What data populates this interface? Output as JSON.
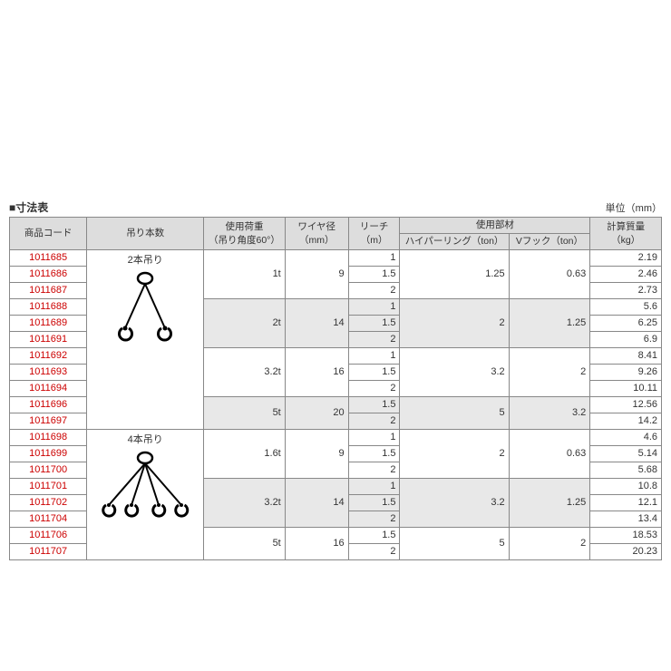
{
  "title": "■寸法表",
  "unit": "単位（mm）",
  "headers": {
    "code": "商品コード",
    "sling": "吊り本数",
    "load": "使用荷重",
    "load_sub": "（吊り角度60°）",
    "wire": "ワイヤ径",
    "wire_unit": "（mm）",
    "reach": "リーチ",
    "reach_unit": "（m）",
    "parts": "使用部材",
    "ring": "ハイパーリング（ton）",
    "hook": "Vフック（ton）",
    "mass": "計算質量",
    "mass_unit": "（kg）"
  },
  "slings": {
    "two": "2本吊り",
    "four": "4本吊り"
  },
  "groups": [
    {
      "load": "1t",
      "wire": "9",
      "ring": "1.25",
      "hook": "0.63",
      "shade": false,
      "rows": [
        {
          "code": "1011685",
          "reach": "1",
          "mass": "2.19"
        },
        {
          "code": "1011686",
          "reach": "1.5",
          "mass": "2.46"
        },
        {
          "code": "1011687",
          "reach": "2",
          "mass": "2.73"
        }
      ]
    },
    {
      "load": "2t",
      "wire": "14",
      "ring": "2",
      "hook": "1.25",
      "shade": true,
      "rows": [
        {
          "code": "1011688",
          "reach": "1",
          "mass": "5.6"
        },
        {
          "code": "1011689",
          "reach": "1.5",
          "mass": "6.25"
        },
        {
          "code": "1011691",
          "reach": "2",
          "mass": "6.9"
        }
      ]
    },
    {
      "load": "3.2t",
      "wire": "16",
      "ring": "3.2",
      "hook": "2",
      "shade": false,
      "rows": [
        {
          "code": "1011692",
          "reach": "1",
          "mass": "8.41"
        },
        {
          "code": "1011693",
          "reach": "1.5",
          "mass": "9.26"
        },
        {
          "code": "1011694",
          "reach": "2",
          "mass": "10.11"
        }
      ]
    },
    {
      "load": "5t",
      "wire": "20",
      "ring": "5",
      "hook": "3.2",
      "shade": true,
      "rows": [
        {
          "code": "1011696",
          "reach": "1.5",
          "mass": "12.56"
        },
        {
          "code": "1011697",
          "reach": "2",
          "mass": "14.2"
        }
      ]
    },
    {
      "load": "1.6t",
      "wire": "9",
      "ring": "2",
      "hook": "0.63",
      "shade": false,
      "rows": [
        {
          "code": "1011698",
          "reach": "1",
          "mass": "4.6"
        },
        {
          "code": "1011699",
          "reach": "1.5",
          "mass": "5.14"
        },
        {
          "code": "1011700",
          "reach": "2",
          "mass": "5.68"
        }
      ]
    },
    {
      "load": "3.2t",
      "wire": "14",
      "ring": "3.2",
      "hook": "1.25",
      "shade": true,
      "rows": [
        {
          "code": "1011701",
          "reach": "1",
          "mass": "10.8"
        },
        {
          "code": "1011702",
          "reach": "1.5",
          "mass": "12.1"
        },
        {
          "code": "1011704",
          "reach": "2",
          "mass": "13.4"
        }
      ]
    },
    {
      "load": "5t",
      "wire": "16",
      "ring": "5",
      "hook": "2",
      "shade": false,
      "rows": [
        {
          "code": "1011706",
          "reach": "1.5",
          "mass": "18.53"
        },
        {
          "code": "1011707",
          "reach": "2",
          "mass": "20.23"
        }
      ]
    }
  ],
  "svg": {
    "two": "<svg width='80' height='90' viewBox='0 0 80 90'><ellipse cx='40' cy='10' rx='8' ry='6' fill='none' stroke='#000' stroke-width='2.5'/><line x1='40' y1='16' x2='18' y2='65' stroke='#000' stroke-width='2'/><line x1='40' y1='16' x2='62' y2='65' stroke='#000' stroke-width='2'/><path d='M15 65 a7 7 0 1 0 7 0' fill='none' stroke='#000' stroke-width='3'/><path d='M58 65 a7 7 0 1 0 7 0' fill='none' stroke='#000' stroke-width='3'/><circle cx='18' cy='65' r='2.5' fill='#000'/><circle cx='62' cy='65' r='2.5' fill='#000'/></svg>",
    "four": "<svg width='100' height='90' viewBox='0 0 100 90'><ellipse cx='50' cy='10' rx='8' ry='6' fill='none' stroke='#000' stroke-width='2.5'/><line x1='50' y1='16' x2='10' y2='62' stroke='#000' stroke-width='2'/><line x1='50' y1='16' x2='35' y2='62' stroke='#000' stroke-width='2'/><line x1='50' y1='16' x2='65' y2='62' stroke='#000' stroke-width='2'/><line x1='50' y1='16' x2='90' y2='62' stroke='#000' stroke-width='2'/><path d='M7 62 a6.5 6.5 0 1 0 6.5 0' fill='none' stroke='#000' stroke-width='3'/><path d='M32 62 a6.5 6.5 0 1 0 6.5 0' fill='none' stroke='#000' stroke-width='3'/><path d='M62 62 a6.5 6.5 0 1 0 6.5 0' fill='none' stroke='#000' stroke-width='3'/><path d='M87 62 a6.5 6.5 0 1 0 6.5 0' fill='none' stroke='#000' stroke-width='3'/><circle cx='10' cy='62' r='2' fill='#000'/><circle cx='35' cy='62' r='2' fill='#000'/><circle cx='65' cy='62' r='2' fill='#000'/><circle cx='90' cy='62' r='2' fill='#000'/></svg>"
  }
}
